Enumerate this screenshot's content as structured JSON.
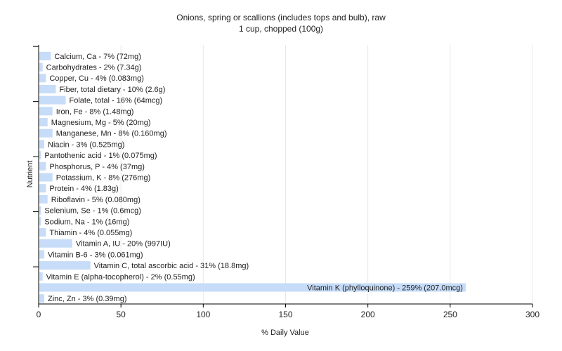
{
  "colors": {
    "bar": "#c6dcf8",
    "grid": "#e8e8e8",
    "axis": "#000000",
    "text": "#222222",
    "background": "#ffffff"
  },
  "chart_data": {
    "type": "bar",
    "orientation": "horizontal",
    "title": "Onions, spring or scallions (includes tops and bulb), raw",
    "subtitle": "1 cup, chopped (100g)",
    "xlabel": "% Daily Value",
    "ylabel": "Nutrient",
    "xlim": [
      0,
      300
    ],
    "xticks": [
      0,
      50,
      100,
      150,
      200,
      250,
      300
    ],
    "grid": true,
    "categories": [
      "Calcium, Ca - 7% (72mg)",
      "Carbohydrates - 2% (7.34g)",
      "Copper, Cu - 4% (0.083mg)",
      "Fiber, total dietary - 10% (2.6g)",
      "Folate, total - 16% (64mcg)",
      "Iron, Fe - 8% (1.48mg)",
      "Magnesium, Mg - 5% (20mg)",
      "Manganese, Mn - 8% (0.160mg)",
      "Niacin - 3% (0.525mg)",
      "Pantothenic acid - 1% (0.075mg)",
      "Phosphorus, P - 4% (37mg)",
      "Potassium, K - 8% (276mg)",
      "Protein - 4% (1.83g)",
      "Riboflavin - 5% (0.080mg)",
      "Selenium, Se - 1% (0.6mcg)",
      "Sodium, Na - 1% (16mg)",
      "Thiamin - 4% (0.055mg)",
      "Vitamin A, IU - 20% (997IU)",
      "Vitamin B-6 - 3% (0.061mg)",
      "Vitamin C, total ascorbic acid - 31% (18.8mg)",
      "Vitamin E (alpha-tocopherol) - 2% (0.55mg)",
      "Vitamin K (phylloquinone) - 259% (207.0mcg)",
      "Zinc, Zn - 3% (0.39mg)"
    ],
    "values": [
      7,
      2,
      4,
      10,
      16,
      8,
      5,
      8,
      3,
      1,
      4,
      8,
      4,
      5,
      1,
      1,
      4,
      20,
      3,
      31,
      2,
      259,
      3
    ]
  }
}
